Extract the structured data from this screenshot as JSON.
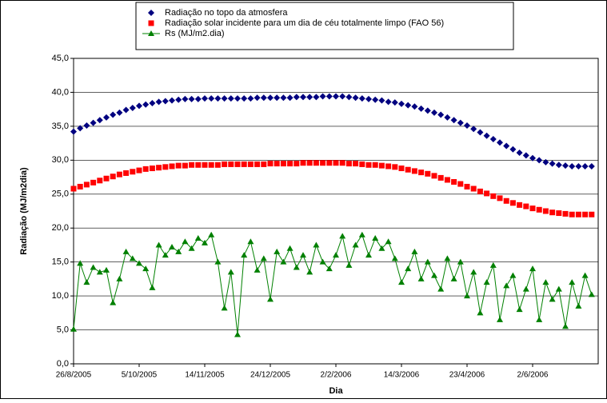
{
  "chart_data": {
    "type": "scatter",
    "x_label": "Dia",
    "y_label": "Radiação (MJ/m2dia)",
    "x": [
      "2005-08-26",
      "2005-08-30",
      "2005-09-03",
      "2005-09-07",
      "2005-09-11",
      "2005-09-15",
      "2005-09-19",
      "2005-09-23",
      "2005-09-27",
      "2005-10-01",
      "2005-10-05",
      "2005-10-09",
      "2005-10-13",
      "2005-10-17",
      "2005-10-21",
      "2005-10-25",
      "2005-10-29",
      "2005-11-02",
      "2005-11-06",
      "2005-11-10",
      "2005-11-14",
      "2005-11-18",
      "2005-11-22",
      "2005-11-26",
      "2005-11-30",
      "2005-12-04",
      "2005-12-08",
      "2005-12-12",
      "2005-12-16",
      "2005-12-20",
      "2005-12-24",
      "2005-12-28",
      "2006-01-01",
      "2006-01-05",
      "2006-01-09",
      "2006-01-13",
      "2006-01-17",
      "2006-01-21",
      "2006-01-25",
      "2006-01-29",
      "2006-02-02",
      "2006-02-06",
      "2006-02-10",
      "2006-02-14",
      "2006-02-18",
      "2006-02-22",
      "2006-02-26",
      "2006-03-02",
      "2006-03-06",
      "2006-03-10",
      "2006-03-14",
      "2006-03-18",
      "2006-03-22",
      "2006-03-26",
      "2006-03-30",
      "2006-04-03",
      "2006-04-07",
      "2006-04-11",
      "2006-04-15",
      "2006-04-19",
      "2006-04-23",
      "2006-04-27",
      "2006-05-01",
      "2006-05-05",
      "2006-05-09",
      "2006-05-13",
      "2006-05-17",
      "2006-05-21",
      "2006-05-25",
      "2006-05-29",
      "2006-06-02",
      "2006-06-06",
      "2006-06-10",
      "2006-06-14",
      "2006-06-18",
      "2006-06-22",
      "2006-06-26",
      "2006-06-30",
      "2006-07-04",
      "2006-07-08"
    ],
    "series": [
      {
        "name": "Radiação no topo da atmosfera",
        "color": "#000080",
        "marker": "diamond",
        "line": false,
        "values": [
          34.2,
          34.7,
          35.1,
          35.5,
          35.9,
          36.3,
          36.7,
          37.0,
          37.4,
          37.7,
          38.0,
          38.2,
          38.4,
          38.6,
          38.7,
          38.8,
          38.9,
          39.0,
          39.0,
          39.0,
          39.1,
          39.1,
          39.1,
          39.1,
          39.1,
          39.1,
          39.1,
          39.1,
          39.2,
          39.2,
          39.2,
          39.2,
          39.2,
          39.2,
          39.3,
          39.3,
          39.3,
          39.3,
          39.4,
          39.4,
          39.4,
          39.4,
          39.3,
          39.2,
          39.1,
          39.0,
          38.9,
          38.8,
          38.6,
          38.5,
          38.3,
          38.1,
          37.9,
          37.6,
          37.3,
          37.0,
          36.7,
          36.3,
          35.9,
          35.5,
          35.1,
          34.6,
          34.1,
          33.6,
          33.1,
          32.6,
          32.1,
          31.6,
          31.1,
          30.7,
          30.3,
          30.0,
          29.7,
          29.5,
          29.3,
          29.2,
          29.1,
          29.1,
          29.1,
          29.1
        ]
      },
      {
        "name": "Radiação solar incidente para um dia de céu totalmente limpo (FAO 56)",
        "color": "#ff0000",
        "marker": "square",
        "line": false,
        "values": [
          25.8,
          26.1,
          26.4,
          26.7,
          27.0,
          27.3,
          27.6,
          27.9,
          28.1,
          28.3,
          28.5,
          28.7,
          28.8,
          28.9,
          29.0,
          29.1,
          29.2,
          29.2,
          29.3,
          29.3,
          29.3,
          29.3,
          29.3,
          29.4,
          29.4,
          29.4,
          29.4,
          29.4,
          29.4,
          29.4,
          29.5,
          29.5,
          29.5,
          29.5,
          29.5,
          29.6,
          29.6,
          29.6,
          29.6,
          29.6,
          29.6,
          29.6,
          29.5,
          29.5,
          29.4,
          29.3,
          29.3,
          29.2,
          29.1,
          29.0,
          28.8,
          28.6,
          28.4,
          28.2,
          28.0,
          27.7,
          27.4,
          27.1,
          26.8,
          26.5,
          26.1,
          25.8,
          25.4,
          25.1,
          24.7,
          24.4,
          24.0,
          23.7,
          23.4,
          23.2,
          22.9,
          22.7,
          22.5,
          22.3,
          22.2,
          22.1,
          22.0,
          22.0,
          22.0,
          22.0
        ]
      },
      {
        "name": "Rs (MJ/m2.dia)",
        "color": "#008000",
        "marker": "triangle",
        "line": true,
        "values": [
          5.1,
          14.8,
          12.0,
          14.2,
          13.5,
          13.8,
          9.0,
          12.5,
          16.5,
          15.5,
          14.8,
          14.0,
          11.2,
          17.5,
          16.0,
          17.2,
          16.5,
          18.0,
          17.0,
          18.5,
          17.8,
          19.0,
          15.0,
          8.2,
          13.5,
          4.3,
          16.0,
          18.0,
          13.8,
          15.5,
          9.5,
          16.5,
          15.0,
          17.0,
          14.2,
          16.0,
          13.5,
          17.5,
          15.0,
          14.0,
          16.0,
          18.8,
          14.5,
          17.5,
          19.0,
          16.0,
          18.5,
          17.0,
          18.0,
          15.5,
          12.0,
          14.0,
          16.5,
          12.5,
          15.0,
          13.0,
          11.0,
          15.5,
          12.5,
          15.0,
          10.0,
          13.5,
          7.5,
          12.0,
          14.5,
          6.5,
          11.5,
          13.0,
          8.0,
          11.0,
          14.0,
          6.5,
          12.0,
          9.5,
          11.0,
          5.5,
          12.0,
          8.5,
          13.0,
          10.2
        ]
      }
    ],
    "xlim": [
      "2005-08-26",
      "2006-07-12"
    ],
    "xticks": [
      {
        "value": "2005-08-26",
        "label": "26/8/2005"
      },
      {
        "value": "2005-10-05",
        "label": "5/10/2005"
      },
      {
        "value": "2005-11-14",
        "label": "14/11/2005"
      },
      {
        "value": "2005-12-24",
        "label": "24/12/2005"
      },
      {
        "value": "2006-02-02",
        "label": "2/2/2006"
      },
      {
        "value": "2006-03-14",
        "label": "14/3/2006"
      },
      {
        "value": "2006-04-23",
        "label": "23/4/2006"
      },
      {
        "value": "2006-06-02",
        "label": "2/6/2006"
      }
    ],
    "ylim": [
      0,
      45
    ],
    "yticks": [
      {
        "value": 0,
        "label": "0,0"
      },
      {
        "value": 5,
        "label": "5,0"
      },
      {
        "value": 10,
        "label": "10,0"
      },
      {
        "value": 15,
        "label": "15,0"
      },
      {
        "value": 20,
        "label": "20,0"
      },
      {
        "value": 25,
        "label": "25,0"
      },
      {
        "value": 30,
        "label": "30,0"
      },
      {
        "value": 35,
        "label": "35,0"
      },
      {
        "value": 40,
        "label": "40,0"
      },
      {
        "value": 45,
        "label": "45,0"
      }
    ],
    "grid": true,
    "legend": "top"
  }
}
